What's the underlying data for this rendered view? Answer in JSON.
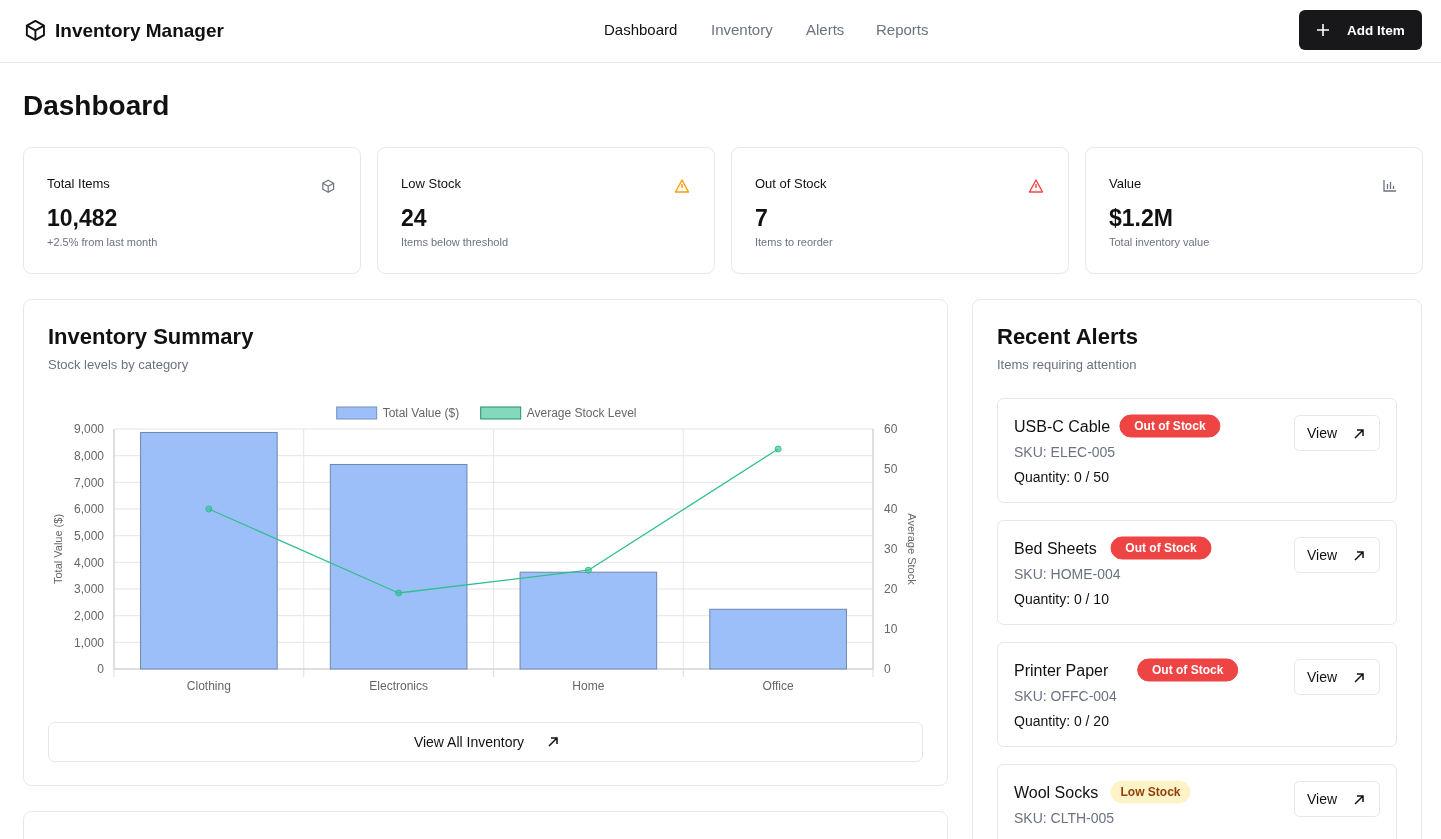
{
  "chart_data": [
    {
      "type": "other",
      "title": "Inventory Manager",
      "subtitle": "Dashboard",
      "annotations": [
        "Dashboard",
        "Inventory",
        "Alerts",
        "Reports",
        "Add Item"
      ]
    },
    {
      "type": "other",
      "title": "Total Items",
      "annotations": [
        "10,482",
        "+2.5% from last month"
      ],
      "color": "#6b7280"
    },
    {
      "type": "other",
      "title": "Low Stock",
      "annotations": [
        "24",
        "Items below threshold"
      ],
      "color": "#f59e0b"
    },
    {
      "type": "other",
      "title": "Out of Stock",
      "annotations": [
        "7",
        "Items to reorder"
      ],
      "color": "#ef4444"
    },
    {
      "type": "other",
      "title": "Value",
      "annotations": [
        "$1.2M",
        "Total inventory value"
      ],
      "color": "#6b7280"
    },
    {
      "type": "bar",
      "title": "Inventory Summary",
      "subtitle": "Stock levels by category",
      "categories": [
        "Clothing",
        "Electronics",
        "Home",
        "Office"
      ],
      "series": [
        {
          "name": "Total Value ($)",
          "type": "bar",
          "color": "#9dbff9",
          "values": [
            8870,
            7670,
            3630,
            2240
          ]
        },
        {
          "name": "Average Stock Level",
          "type": "line",
          "axis": "y2",
          "color": "#2fbf8f",
          "values": [
            40,
            19,
            24.7,
            55
          ]
        }
      ],
      "ylim": [
        0,
        9000
      ],
      "yticks": [
        0,
        {
          "value": 1000,
          "label": "1,000"
        },
        {
          "value": 2000,
          "label": "2,000"
        },
        {
          "value": 3000,
          "label": "3,000"
        },
        {
          "value": 4000,
          "label": "4,000"
        },
        {
          "value": 5000,
          "label": "5,000"
        },
        {
          "value": 6000,
          "label": "6,000"
        },
        {
          "value": 7000,
          "label": "7,000"
        },
        {
          "value": 8000,
          "label": "8,000"
        },
        {
          "value": 9000,
          "label": "9,000"
        }
      ],
      "y2lim": [
        0,
        60
      ],
      "y2ticks": [
        0,
        10,
        20,
        30,
        40,
        50,
        60
      ],
      "ylabel": "Total Value ($)",
      "y2label": "Average Stock",
      "grid": true,
      "legend": "top",
      "marker": "circle",
      "annotations": [
        "View All Inventory"
      ]
    },
    {
      "type": "other",
      "title": "Recent Alerts",
      "subtitle": "Items requiring attention"
    },
    {
      "type": "other",
      "title": "USB-C Cable",
      "annotations": [
        "Out of Stock",
        "View",
        "SKU: ELEC-005",
        "Quantity: 0 / 50"
      ],
      "colors": [
        "#ef4444",
        "#ffffff"
      ]
    },
    {
      "type": "other",
      "title": "Bed Sheets",
      "annotations": [
        "Out of Stock",
        "View",
        "SKU: HOME-004",
        "Quantity: 0 / 10"
      ],
      "colors": [
        "#ef4444",
        "#ffffff"
      ]
    },
    {
      "type": "other",
      "title": "Printer Paper",
      "annotations": [
        "Out of Stock",
        "View",
        "SKU: OFFC-004",
        "Quantity: 0 / 20"
      ],
      "colors": [
        "#ef4444",
        "#ffffff"
      ]
    },
    {
      "type": "other",
      "title": "Wool Socks",
      "annotations": [
        "Low Stock",
        "View",
        "SKU: CLTH-005"
      ],
      "colors": [
        "#fef3c7",
        "#92400e"
      ]
    }
  ]
}
